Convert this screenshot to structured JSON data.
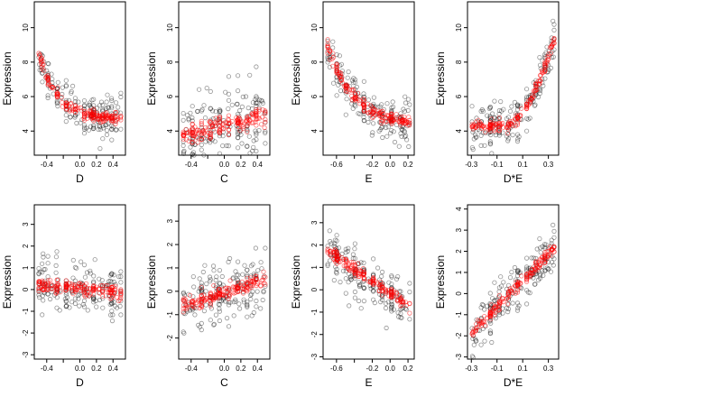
{
  "colors": {
    "observed": "#000000",
    "fitted": "#ff0000",
    "frame": "#000000",
    "background": "#ffffff"
  },
  "chart_data": [
    {
      "type": "scatter",
      "xlabel": "D",
      "ylabel": "Expression",
      "xlim": [
        -0.55,
        0.55
      ],
      "ylim": [
        2.6,
        11.5
      ],
      "xticks": [
        -0.4,
        -0.2,
        0.0,
        0.2,
        0.4
      ],
      "xtick_labels": [
        "-0.4",
        "",
        "0.0",
        "0.2",
        "0.4"
      ],
      "yticks": [
        4,
        6,
        8,
        10
      ],
      "ytick_labels": [
        "4",
        "6",
        "8",
        "10"
      ],
      "shape": {
        "kind": "decay",
        "params": [
          -0.55,
          9.6,
          4.7,
          0.22,
          0.05,
          0.85
        ]
      }
    },
    {
      "type": "scatter",
      "xlabel": "C",
      "ylabel": "Expression",
      "xlim": [
        -0.55,
        0.55
      ],
      "ylim": [
        2.6,
        11.5
      ],
      "xticks": [
        -0.4,
        -0.2,
        0.0,
        0.2,
        0.4
      ],
      "xtick_labels": [
        "-0.4",
        "",
        "0.0",
        "0.2",
        "0.4"
      ],
      "yticks": [
        4,
        6,
        8,
        10
      ],
      "ytick_labels": [
        "4",
        "6",
        "8",
        "10"
      ],
      "shape": {
        "kind": "linear",
        "params": [
          4.3,
          1.1,
          0.9,
          1.6
        ]
      }
    },
    {
      "type": "scatter",
      "xlabel": "E",
      "ylabel": "Expression",
      "xlim": [
        -0.75,
        0.27
      ],
      "ylim": [
        2.6,
        11.5
      ],
      "xticks": [
        -0.6,
        -0.4,
        -0.2,
        0.0,
        0.2
      ],
      "xtick_labels": [
        "-0.6",
        "",
        "-0.2",
        "0.0",
        "0.2"
      ],
      "yticks": [
        4,
        6,
        8,
        10
      ],
      "ytick_labels": [
        "4",
        "6",
        "8",
        "10"
      ],
      "shape": {
        "kind": "decay",
        "params": [
          -0.72,
          9.3,
          4.4,
          0.28,
          0.18,
          1.0
        ]
      }
    },
    {
      "type": "scatter",
      "xlabel": "D*E",
      "ylabel": "Expression",
      "xlim": [
        -0.33,
        0.38
      ],
      "ylim": [
        2.6,
        11.5
      ],
      "xticks": [
        -0.3,
        -0.1,
        0.1,
        0.3
      ],
      "xtick_labels": [
        "-0.3",
        "-0.1",
        "0.1",
        "0.3"
      ],
      "yticks": [
        4,
        6,
        8,
        10
      ],
      "ytick_labels": [
        "4",
        "6",
        "8",
        "10"
      ],
      "shape": {
        "kind": "rise",
        "params": [
          4.3,
          5.6,
          0.0,
          2.6,
          0.02,
          0.9
        ]
      }
    },
    {
      "type": "scatter",
      "xlabel": "D",
      "ylabel": "Expression",
      "xlim": [
        -0.55,
        0.55
      ],
      "ylim": [
        -3.2,
        3.9
      ],
      "xticks": [
        -0.4,
        -0.2,
        0.0,
        0.2,
        0.4
      ],
      "xtick_labels": [
        "-0.4",
        "",
        "0.0",
        "0.2",
        "0.4"
      ],
      "yticks": [
        -3,
        -2,
        -1,
        0,
        1,
        2,
        3
      ],
      "ytick_labels": [
        "-3",
        "-2",
        "-1",
        "0",
        "1",
        "2",
        "3"
      ],
      "shape": {
        "kind": "linear",
        "params": [
          0.05,
          -0.35,
          0.0,
          0.9
        ]
      }
    },
    {
      "type": "scatter",
      "xlabel": "C",
      "ylabel": "Expression",
      "xlim": [
        -0.55,
        0.55
      ],
      "ylim": [
        -2.9,
        3.7
      ],
      "xticks": [
        -0.4,
        -0.2,
        0.0,
        0.2,
        0.4
      ],
      "xtick_labels": [
        "-0.4",
        "",
        "0.0",
        "0.2",
        "0.4"
      ],
      "yticks": [
        -2,
        -1,
        0,
        1,
        2,
        3
      ],
      "ytick_labels": [
        "-2",
        "-1",
        "0",
        "1",
        "2",
        "3"
      ],
      "shape": {
        "kind": "linear",
        "params": [
          -0.05,
          1.1,
          0.0,
          0.85
        ]
      }
    },
    {
      "type": "scatter",
      "xlabel": "E",
      "ylabel": "Expression",
      "xlim": [
        -0.75,
        0.27
      ],
      "ylim": [
        -3.1,
        3.8
      ],
      "xticks": [
        -0.6,
        -0.4,
        -0.2,
        0.0,
        0.2
      ],
      "xtick_labels": [
        "-0.6",
        "",
        "-0.2",
        "0.0",
        "0.2"
      ],
      "yticks": [
        -3,
        -2,
        -1,
        0,
        1,
        2,
        3
      ],
      "ytick_labels": [
        "-3",
        "-2",
        "-1",
        "0",
        "1",
        "2",
        "3"
      ],
      "shape": {
        "kind": "linear",
        "params": [
          -0.15,
          -2.7,
          0.0,
          0.8
        ]
      }
    },
    {
      "type": "scatter",
      "xlabel": "D*E",
      "ylabel": "Expression",
      "xlim": [
        -0.33,
        0.38
      ],
      "ylim": [
        -3.1,
        4.2
      ],
      "xticks": [
        -0.3,
        -0.1,
        0.1,
        0.3
      ],
      "xtick_labels": [
        "-0.3",
        "-0.1",
        "0.1",
        "0.3"
      ],
      "yticks": [
        -3,
        -2,
        -1,
        0,
        1,
        2,
        3,
        4
      ],
      "ytick_labels": [
        "-3",
        "-2",
        "-1",
        "0",
        "1",
        "2",
        "3",
        "4"
      ],
      "shape": {
        "kind": "linear",
        "params": [
          0.0,
          6.3,
          0.0,
          0.8
        ]
      }
    }
  ]
}
